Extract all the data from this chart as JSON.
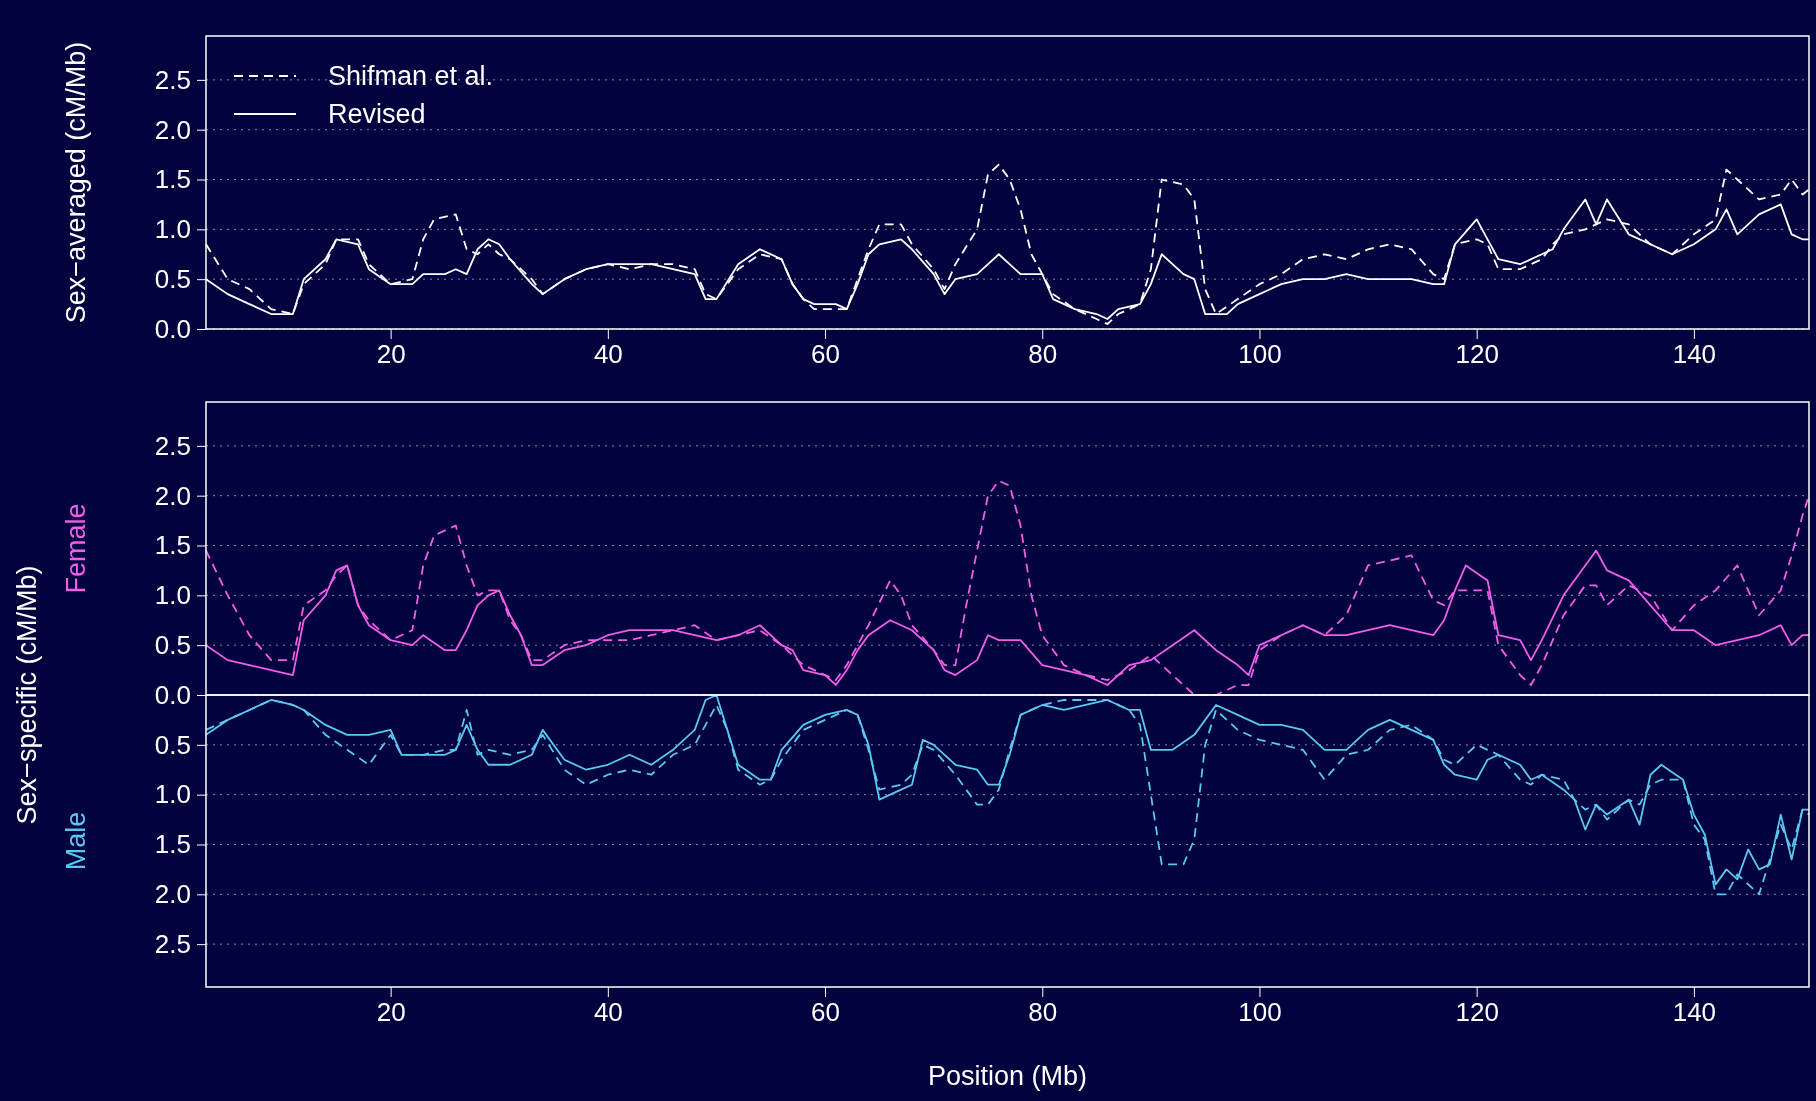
{
  "chart_data": [
    {
      "type": "line",
      "ylabel": "Sex−averaged (cM/Mb)",
      "xlim": [
        3,
        150.6
      ],
      "ylim": [
        0,
        2.94
      ],
      "xticks": [
        20,
        40,
        60,
        80,
        100,
        120,
        140
      ],
      "yticks": [
        {
          "value": 0,
          "label": "0.0"
        },
        {
          "value": 0.5,
          "label": "0.5"
        },
        {
          "value": 1,
          "label": "1.0"
        },
        {
          "value": 1.5,
          "label": "1.5"
        },
        {
          "value": 2,
          "label": "2.0"
        },
        {
          "value": 2.5,
          "label": "2.5"
        }
      ],
      "grid": "y",
      "legend": "top left",
      "series": [
        {
          "name": "Shifman et al.",
          "color": "#ffffff",
          "line_style": "dashed",
          "x": [
            3,
            5,
            7,
            9,
            11,
            12,
            14,
            15,
            17,
            18,
            20,
            22,
            23,
            24,
            26,
            27,
            28,
            29,
            30,
            31,
            33,
            34,
            36,
            38,
            40,
            42,
            44,
            46,
            48,
            49,
            50,
            52,
            54,
            56,
            57,
            58,
            59,
            61,
            62,
            63,
            64,
            65,
            67,
            68,
            70,
            71,
            72,
            74,
            75,
            76,
            77,
            78,
            79,
            80,
            81,
            83,
            85,
            86,
            87,
            89,
            90,
            91,
            93,
            94,
            95,
            96,
            98,
            100,
            102,
            104,
            106,
            108,
            110,
            112,
            114,
            116,
            117,
            118,
            120,
            121,
            122,
            124,
            126,
            127,
            128,
            130,
            131,
            132,
            134,
            136,
            138,
            140,
            142,
            143,
            144,
            146,
            148,
            149,
            150,
            150.6
          ],
          "values": [
            0.85,
            0.5,
            0.4,
            0.2,
            0.15,
            0.45,
            0.65,
            0.9,
            0.9,
            0.65,
            0.45,
            0.5,
            0.9,
            1.1,
            1.15,
            0.8,
            0.75,
            0.85,
            0.75,
            0.7,
            0.5,
            0.35,
            0.5,
            0.6,
            0.65,
            0.6,
            0.65,
            0.65,
            0.6,
            0.35,
            0.3,
            0.6,
            0.75,
            0.7,
            0.45,
            0.3,
            0.2,
            0.2,
            0.2,
            0.5,
            0.8,
            1.05,
            1.05,
            0.85,
            0.6,
            0.4,
            0.65,
            1.0,
            1.55,
            1.65,
            1.5,
            1.2,
            0.75,
            0.55,
            0.35,
            0.2,
            0.1,
            0.05,
            0.15,
            0.25,
            0.6,
            1.5,
            1.45,
            1.3,
            0.4,
            0.15,
            0.3,
            0.45,
            0.55,
            0.7,
            0.75,
            0.7,
            0.8,
            0.85,
            0.8,
            0.55,
            0.5,
            0.85,
            0.9,
            0.85,
            0.6,
            0.6,
            0.7,
            0.85,
            0.95,
            1.0,
            1.05,
            1.1,
            1.05,
            0.85,
            0.75,
            0.95,
            1.1,
            1.6,
            1.5,
            1.3,
            1.35,
            1.5,
            1.35,
            1.4
          ]
        },
        {
          "name": "Revised",
          "color": "#ffffff",
          "line_style": "solid",
          "x": [
            3,
            5,
            7,
            9,
            11,
            12,
            14,
            15,
            17,
            18,
            20,
            22,
            23,
            25,
            26,
            27,
            28,
            29,
            30,
            31,
            33,
            34,
            36,
            38,
            40,
            42,
            44,
            46,
            48,
            49,
            50,
            52,
            54,
            56,
            57,
            58,
            59,
            61,
            62,
            63,
            64,
            65,
            67,
            68,
            70,
            71,
            72,
            74,
            76,
            78,
            80,
            81,
            83,
            85,
            86,
            87,
            89,
            90,
            91,
            93,
            94,
            95,
            97,
            98,
            100,
            102,
            104,
            106,
            108,
            110,
            112,
            114,
            116,
            117,
            118,
            120,
            121,
            122,
            124,
            126,
            127,
            128,
            130,
            131,
            132,
            134,
            136,
            138,
            140,
            142,
            143,
            144,
            146,
            148,
            149,
            150,
            150.6
          ],
          "values": [
            0.5,
            0.35,
            0.25,
            0.15,
            0.15,
            0.5,
            0.7,
            0.9,
            0.85,
            0.6,
            0.45,
            0.45,
            0.55,
            0.55,
            0.6,
            0.55,
            0.8,
            0.9,
            0.85,
            0.7,
            0.45,
            0.35,
            0.5,
            0.6,
            0.65,
            0.65,
            0.65,
            0.6,
            0.55,
            0.3,
            0.3,
            0.65,
            0.8,
            0.7,
            0.45,
            0.3,
            0.25,
            0.25,
            0.2,
            0.45,
            0.75,
            0.85,
            0.9,
            0.8,
            0.55,
            0.35,
            0.5,
            0.55,
            0.75,
            0.55,
            0.55,
            0.3,
            0.2,
            0.15,
            0.1,
            0.2,
            0.25,
            0.45,
            0.75,
            0.55,
            0.5,
            0.15,
            0.15,
            0.25,
            0.35,
            0.45,
            0.5,
            0.5,
            0.55,
            0.5,
            0.5,
            0.5,
            0.45,
            0.45,
            0.85,
            1.1,
            0.9,
            0.7,
            0.65,
            0.75,
            0.8,
            1.0,
            1.3,
            1.05,
            1.3,
            0.95,
            0.85,
            0.75,
            0.85,
            1.0,
            1.2,
            0.95,
            1.15,
            1.25,
            0.95,
            0.9,
            0.9
          ]
        }
      ]
    },
    {
      "type": "line",
      "ylabel": "Female",
      "xlim": [
        3,
        150.6
      ],
      "ylim": [
        0,
        2.94
      ],
      "xticks": [
        20,
        40,
        60,
        80,
        100,
        120,
        140
      ],
      "yticks": [
        {
          "value": 0,
          "label": "0.0"
        },
        {
          "value": 0.5,
          "label": "0.5"
        },
        {
          "value": 1,
          "label": "1.0"
        },
        {
          "value": 1.5,
          "label": "1.5"
        },
        {
          "value": 2,
          "label": "2.0"
        },
        {
          "value": 2.5,
          "label": "2.5"
        }
      ],
      "grid": "y",
      "tick_labels": "y",
      "annotations": [
        "Sex−specific (cM/Mb)"
      ],
      "series": [
        {
          "color": "#f35ee8",
          "line_style": "dashed",
          "x": [
            3,
            5,
            7,
            9,
            11,
            12,
            14,
            15,
            16,
            17,
            18,
            20,
            22,
            23,
            24,
            26,
            27,
            28,
            29,
            30,
            31,
            32,
            33,
            34,
            36,
            38,
            40,
            42,
            44,
            46,
            48,
            50,
            52,
            54,
            56,
            57,
            58,
            60,
            61,
            62,
            63,
            64,
            66,
            67,
            68,
            70,
            71,
            72,
            73,
            75,
            76,
            77,
            78,
            79,
            80,
            82,
            84,
            86,
            88,
            90,
            92,
            94,
            96,
            98,
            99,
            100,
            102,
            104,
            106,
            108,
            110,
            112,
            114,
            116,
            117,
            118,
            119,
            121,
            122,
            124,
            125,
            126,
            128,
            130,
            131,
            132,
            134,
            136,
            138,
            140,
            142,
            144,
            146,
            148,
            149,
            150,
            150.6
          ],
          "values": [
            1.45,
            1.0,
            0.6,
            0.35,
            0.35,
            0.9,
            1.05,
            1.2,
            1.3,
            0.9,
            0.75,
            0.55,
            0.65,
            1.3,
            1.6,
            1.7,
            1.3,
            1.0,
            1.05,
            1.05,
            0.75,
            0.6,
            0.35,
            0.35,
            0.5,
            0.55,
            0.55,
            0.55,
            0.6,
            0.65,
            0.7,
            0.55,
            0.6,
            0.65,
            0.5,
            0.4,
            0.3,
            0.2,
            0.15,
            0.3,
            0.5,
            0.7,
            1.15,
            1.0,
            0.7,
            0.45,
            0.3,
            0.3,
            0.9,
            2.0,
            2.15,
            2.1,
            1.7,
            1.0,
            0.6,
            0.3,
            0.2,
            0.15,
            0.25,
            0.4,
            0.2,
            0.0,
            0.0,
            0.1,
            0.1,
            0.45,
            0.6,
            0.7,
            0.6,
            0.8,
            1.3,
            1.35,
            1.4,
            0.95,
            0.9,
            1.05,
            1.05,
            1.05,
            0.5,
            0.2,
            0.1,
            0.3,
            0.8,
            1.1,
            1.1,
            0.9,
            1.1,
            1.0,
            0.65,
            0.9,
            1.05,
            1.3,
            0.8,
            1.05,
            1.4,
            1.8,
            2.0
          ]
        },
        {
          "color": "#f35ee8",
          "line_style": "solid",
          "x": [
            3,
            5,
            7,
            9,
            11,
            12,
            14,
            15,
            16,
            17,
            18,
            20,
            22,
            23,
            25,
            26,
            27,
            28,
            29,
            30,
            31,
            32,
            33,
            34,
            36,
            38,
            40,
            42,
            44,
            46,
            48,
            50,
            52,
            54,
            56,
            57,
            58,
            60,
            61,
            62,
            63,
            64,
            66,
            68,
            70,
            71,
            72,
            74,
            75,
            76,
            78,
            80,
            82,
            84,
            86,
            88,
            90,
            92,
            94,
            96,
            98,
            99,
            100,
            102,
            104,
            106,
            108,
            110,
            112,
            114,
            116,
            117,
            118,
            119,
            121,
            122,
            124,
            125,
            126,
            128,
            130,
            131,
            132,
            134,
            136,
            138,
            140,
            142,
            144,
            146,
            148,
            149,
            150,
            150.6
          ],
          "values": [
            0.5,
            0.35,
            0.3,
            0.25,
            0.2,
            0.75,
            1.0,
            1.25,
            1.3,
            0.9,
            0.7,
            0.55,
            0.5,
            0.6,
            0.45,
            0.45,
            0.65,
            0.9,
            1.0,
            1.05,
            0.8,
            0.6,
            0.3,
            0.3,
            0.45,
            0.5,
            0.6,
            0.65,
            0.65,
            0.65,
            0.6,
            0.55,
            0.6,
            0.7,
            0.5,
            0.45,
            0.25,
            0.2,
            0.1,
            0.25,
            0.45,
            0.6,
            0.75,
            0.65,
            0.45,
            0.25,
            0.2,
            0.35,
            0.6,
            0.55,
            0.55,
            0.3,
            0.25,
            0.2,
            0.1,
            0.3,
            0.35,
            0.5,
            0.65,
            0.45,
            0.3,
            0.2,
            0.5,
            0.6,
            0.7,
            0.6,
            0.6,
            0.65,
            0.7,
            0.65,
            0.6,
            0.75,
            1.05,
            1.3,
            1.15,
            0.6,
            0.55,
            0.35,
            0.55,
            1.0,
            1.3,
            1.45,
            1.25,
            1.15,
            0.9,
            0.65,
            0.65,
            0.5,
            0.55,
            0.6,
            0.7,
            0.5,
            0.6,
            0.6
          ]
        }
      ]
    },
    {
      "type": "line",
      "ylabel": "Male",
      "xlabel": "Position (Mb)",
      "xlim": [
        3,
        150.6
      ],
      "ylim": [
        2.93,
        0
      ],
      "xticks": [
        20,
        40,
        60,
        80,
        100,
        120,
        140
      ],
      "yticks": [
        {
          "value": 0.5,
          "label": "0.5"
        },
        {
          "value": 1,
          "label": "1.0"
        },
        {
          "value": 1.5,
          "label": "1.5"
        },
        {
          "value": 2,
          "label": "2.0"
        },
        {
          "value": 2.5,
          "label": "2.5"
        }
      ],
      "grid": "y",
      "series": [
        {
          "color": "#5bc8f0",
          "line_style": "dashed",
          "x": [
            3,
            5,
            7,
            9,
            11,
            12,
            14,
            16,
            18,
            20,
            21,
            23,
            25,
            26,
            27,
            28,
            29,
            31,
            33,
            34,
            36,
            38,
            40,
            42,
            44,
            46,
            48,
            49,
            50,
            51,
            52,
            54,
            55,
            56,
            58,
            60,
            62,
            63,
            64,
            65,
            67,
            68,
            69,
            70,
            72,
            74,
            75,
            76,
            77,
            78,
            80,
            82,
            84,
            86,
            88,
            89,
            90,
            91,
            93,
            94,
            95,
            96,
            98,
            100,
            102,
            104,
            106,
            108,
            110,
            112,
            114,
            116,
            117,
            118,
            120,
            121,
            122,
            124,
            125,
            126,
            128,
            129,
            130,
            131,
            132,
            134,
            135,
            136,
            137,
            139,
            140,
            141,
            142,
            143,
            144,
            145,
            146,
            147,
            148,
            149,
            150,
            150.6
          ],
          "values": [
            0.35,
            0.25,
            0.15,
            0.05,
            0.1,
            0.15,
            0.4,
            0.55,
            0.7,
            0.4,
            0.6,
            0.6,
            0.55,
            0.55,
            0.15,
            0.6,
            0.55,
            0.6,
            0.55,
            0.4,
            0.75,
            0.9,
            0.8,
            0.75,
            0.8,
            0.6,
            0.5,
            0.3,
            0.1,
            0.35,
            0.75,
            0.9,
            0.85,
            0.65,
            0.35,
            0.25,
            0.15,
            0.2,
            0.55,
            0.95,
            0.9,
            0.8,
            0.5,
            0.55,
            0.8,
            1.1,
            1.1,
            0.95,
            0.55,
            0.2,
            0.1,
            0.05,
            0.05,
            0.05,
            0.15,
            0.3,
            1.0,
            1.7,
            1.7,
            1.45,
            0.5,
            0.15,
            0.35,
            0.45,
            0.5,
            0.55,
            0.85,
            0.6,
            0.55,
            0.35,
            0.3,
            0.45,
            0.65,
            0.7,
            0.5,
            0.55,
            0.6,
            0.85,
            0.9,
            0.8,
            0.85,
            1.05,
            1.15,
            1.1,
            1.25,
            1.05,
            1.1,
            0.9,
            0.85,
            0.85,
            1.3,
            1.45,
            2.0,
            2.0,
            1.8,
            1.9,
            2.0,
            1.65,
            1.3,
            1.55,
            1.15,
            1.2
          ]
        },
        {
          "color": "#5bc8f0",
          "line_style": "solid",
          "x": [
            3,
            5,
            7,
            9,
            11,
            12,
            14,
            16,
            18,
            20,
            21,
            23,
            25,
            26,
            27,
            28,
            29,
            31,
            33,
            34,
            36,
            38,
            40,
            42,
            44,
            46,
            48,
            49,
            50,
            51,
            52,
            54,
            55,
            56,
            58,
            60,
            62,
            63,
            64,
            65,
            67,
            68,
            69,
            70,
            72,
            74,
            75,
            76,
            77,
            78,
            80,
            82,
            84,
            86,
            88,
            89,
            90,
            92,
            94,
            96,
            98,
            100,
            102,
            104,
            106,
            108,
            110,
            112,
            114,
            116,
            117,
            118,
            120,
            121,
            122,
            124,
            125,
            126,
            128,
            129,
            130,
            131,
            132,
            134,
            135,
            136,
            137,
            139,
            140,
            141,
            142,
            143,
            144,
            145,
            146,
            147,
            148,
            149,
            150,
            150.6
          ],
          "values": [
            0.4,
            0.25,
            0.15,
            0.05,
            0.1,
            0.15,
            0.3,
            0.4,
            0.4,
            0.35,
            0.6,
            0.6,
            0.6,
            0.55,
            0.3,
            0.55,
            0.7,
            0.7,
            0.6,
            0.35,
            0.65,
            0.75,
            0.7,
            0.6,
            0.7,
            0.55,
            0.35,
            0.05,
            0.0,
            0.35,
            0.7,
            0.85,
            0.85,
            0.55,
            0.3,
            0.2,
            0.15,
            0.2,
            0.5,
            1.05,
            0.95,
            0.9,
            0.45,
            0.5,
            0.7,
            0.75,
            0.9,
            0.9,
            0.6,
            0.2,
            0.1,
            0.15,
            0.1,
            0.05,
            0.15,
            0.15,
            0.55,
            0.55,
            0.4,
            0.1,
            0.2,
            0.3,
            0.3,
            0.35,
            0.55,
            0.55,
            0.35,
            0.25,
            0.35,
            0.45,
            0.7,
            0.8,
            0.85,
            0.65,
            0.6,
            0.7,
            0.85,
            0.8,
            0.95,
            1.05,
            1.35,
            1.1,
            1.2,
            1.05,
            1.3,
            0.8,
            0.7,
            0.85,
            1.2,
            1.4,
            1.9,
            1.75,
            1.85,
            1.55,
            1.75,
            1.7,
            1.2,
            1.65,
            1.15,
            1.15
          ]
        }
      ]
    }
  ]
}
